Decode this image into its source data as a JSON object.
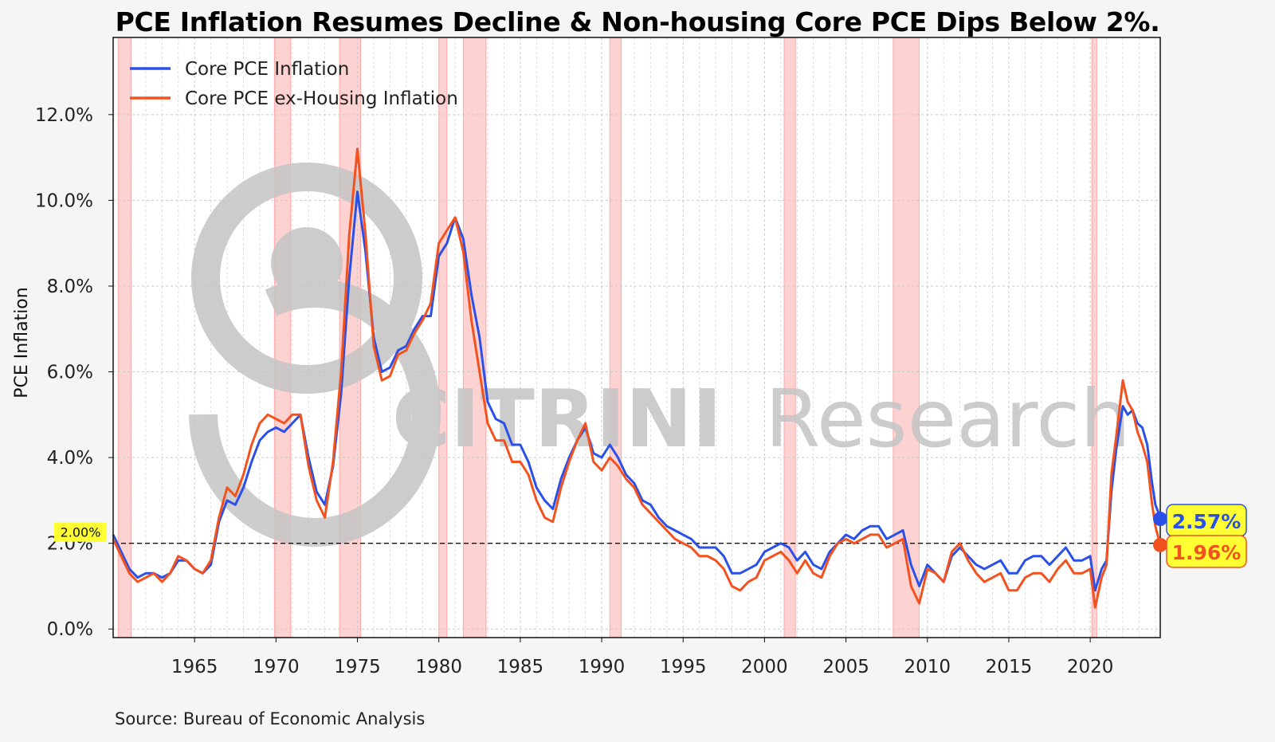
{
  "title": "PCE Inflation Resumes Decline & Non-housing Core PCE Dips Below 2%.",
  "source": "Source: Bureau of Economic Analysis",
  "watermark": {
    "brand": "CITRINI",
    "suffix": "Research"
  },
  "chart_data": {
    "type": "line",
    "ylabel": "PCE Inflation",
    "xlim": [
      1960.0,
      2024.3
    ],
    "ylim": [
      -0.2,
      13.8
    ],
    "yticks": [
      0,
      2,
      4,
      6,
      8,
      10,
      12
    ],
    "ytick_labels": [
      "0.0%",
      "2.0%",
      "4.0%",
      "6.0%",
      "8.0%",
      "10.0%",
      "12.0%"
    ],
    "xticks": [
      1965,
      1970,
      1975,
      1980,
      1985,
      1990,
      1995,
      2000,
      2005,
      2010,
      2015,
      2020
    ],
    "xtick_labels": [
      "1965",
      "1970",
      "1975",
      "1980",
      "1985",
      "1990",
      "1995",
      "2000",
      "2005",
      "2010",
      "2015",
      "2020"
    ],
    "grid": true,
    "legend_position": "top-left",
    "reference_line": {
      "value": 2.0,
      "label": "2.00%",
      "style": "dashed"
    },
    "recessions": [
      [
        1960.3,
        1961.1
      ],
      [
        1969.9,
        1970.9
      ],
      [
        1973.9,
        1975.2
      ],
      [
        1980.0,
        1980.5
      ],
      [
        1981.5,
        1982.9
      ],
      [
        1990.5,
        1991.2
      ],
      [
        2001.2,
        2001.9
      ],
      [
        2007.9,
        2009.5
      ],
      [
        2020.1,
        2020.4
      ]
    ],
    "series": [
      {
        "name": "Core PCE Inflation",
        "color": "#2b50e8",
        "end_label": "2.57%",
        "points": [
          [
            1960.0,
            2.2
          ],
          [
            1960.5,
            1.8
          ],
          [
            1961.0,
            1.4
          ],
          [
            1961.5,
            1.2
          ],
          [
            1962.0,
            1.3
          ],
          [
            1962.5,
            1.3
          ],
          [
            1963.0,
            1.2
          ],
          [
            1963.5,
            1.3
          ],
          [
            1964.0,
            1.6
          ],
          [
            1964.5,
            1.6
          ],
          [
            1965.0,
            1.4
          ],
          [
            1965.5,
            1.3
          ],
          [
            1966.0,
            1.5
          ],
          [
            1966.5,
            2.5
          ],
          [
            1967.0,
            3.0
          ],
          [
            1967.5,
            2.9
          ],
          [
            1968.0,
            3.3
          ],
          [
            1968.5,
            3.9
          ],
          [
            1969.0,
            4.4
          ],
          [
            1969.5,
            4.6
          ],
          [
            1970.0,
            4.7
          ],
          [
            1970.5,
            4.6
          ],
          [
            1971.0,
            4.8
          ],
          [
            1971.5,
            5.0
          ],
          [
            1972.0,
            4.0
          ],
          [
            1972.5,
            3.2
          ],
          [
            1973.0,
            2.9
          ],
          [
            1973.5,
            3.8
          ],
          [
            1974.0,
            5.5
          ],
          [
            1974.5,
            8.2
          ],
          [
            1975.0,
            10.2
          ],
          [
            1975.5,
            8.8
          ],
          [
            1976.0,
            6.8
          ],
          [
            1976.5,
            6.0
          ],
          [
            1977.0,
            6.1
          ],
          [
            1977.5,
            6.5
          ],
          [
            1978.0,
            6.6
          ],
          [
            1978.5,
            7.0
          ],
          [
            1979.0,
            7.3
          ],
          [
            1979.5,
            7.3
          ],
          [
            1980.0,
            8.7
          ],
          [
            1980.5,
            9.0
          ],
          [
            1981.0,
            9.6
          ],
          [
            1981.5,
            9.1
          ],
          [
            1982.0,
            7.8
          ],
          [
            1982.5,
            6.8
          ],
          [
            1983.0,
            5.3
          ],
          [
            1983.5,
            4.9
          ],
          [
            1984.0,
            4.8
          ],
          [
            1984.5,
            4.3
          ],
          [
            1985.0,
            4.3
          ],
          [
            1985.5,
            3.9
          ],
          [
            1986.0,
            3.3
          ],
          [
            1986.5,
            3.0
          ],
          [
            1987.0,
            2.8
          ],
          [
            1987.5,
            3.5
          ],
          [
            1988.0,
            4.0
          ],
          [
            1988.5,
            4.4
          ],
          [
            1989.0,
            4.7
          ],
          [
            1989.5,
            4.1
          ],
          [
            1990.0,
            4.0
          ],
          [
            1990.5,
            4.3
          ],
          [
            1991.0,
            4.0
          ],
          [
            1991.5,
            3.6
          ],
          [
            1992.0,
            3.4
          ],
          [
            1992.5,
            3.0
          ],
          [
            1993.0,
            2.9
          ],
          [
            1993.5,
            2.6
          ],
          [
            1994.0,
            2.4
          ],
          [
            1994.5,
            2.3
          ],
          [
            1995.0,
            2.2
          ],
          [
            1995.5,
            2.1
          ],
          [
            1996.0,
            1.9
          ],
          [
            1996.5,
            1.9
          ],
          [
            1997.0,
            1.9
          ],
          [
            1997.5,
            1.7
          ],
          [
            1998.0,
            1.3
          ],
          [
            1998.5,
            1.3
          ],
          [
            1999.0,
            1.4
          ],
          [
            1999.5,
            1.5
          ],
          [
            2000.0,
            1.8
          ],
          [
            2000.5,
            1.9
          ],
          [
            2001.0,
            2.0
          ],
          [
            2001.5,
            1.9
          ],
          [
            2002.0,
            1.6
          ],
          [
            2002.5,
            1.8
          ],
          [
            2003.0,
            1.5
          ],
          [
            2003.5,
            1.4
          ],
          [
            2004.0,
            1.8
          ],
          [
            2004.5,
            2.0
          ],
          [
            2005.0,
            2.2
          ],
          [
            2005.5,
            2.1
          ],
          [
            2006.0,
            2.3
          ],
          [
            2006.5,
            2.4
          ],
          [
            2007.0,
            2.4
          ],
          [
            2007.5,
            2.1
          ],
          [
            2008.0,
            2.2
          ],
          [
            2008.5,
            2.3
          ],
          [
            2009.0,
            1.5
          ],
          [
            2009.5,
            1.0
          ],
          [
            2010.0,
            1.5
          ],
          [
            2010.5,
            1.3
          ],
          [
            2011.0,
            1.1
          ],
          [
            2011.5,
            1.7
          ],
          [
            2012.0,
            1.9
          ],
          [
            2012.5,
            1.7
          ],
          [
            2013.0,
            1.5
          ],
          [
            2013.5,
            1.4
          ],
          [
            2014.0,
            1.5
          ],
          [
            2014.5,
            1.6
          ],
          [
            2015.0,
            1.3
          ],
          [
            2015.5,
            1.3
          ],
          [
            2016.0,
            1.6
          ],
          [
            2016.5,
            1.7
          ],
          [
            2017.0,
            1.7
          ],
          [
            2017.5,
            1.5
          ],
          [
            2018.0,
            1.7
          ],
          [
            2018.5,
            1.9
          ],
          [
            2019.0,
            1.6
          ],
          [
            2019.5,
            1.6
          ],
          [
            2020.0,
            1.7
          ],
          [
            2020.3,
            0.9
          ],
          [
            2020.7,
            1.4
          ],
          [
            2021.0,
            1.6
          ],
          [
            2021.3,
            3.2
          ],
          [
            2021.6,
            4.2
          ],
          [
            2022.0,
            5.2
          ],
          [
            2022.3,
            5.0
          ],
          [
            2022.6,
            5.1
          ],
          [
            2022.9,
            4.8
          ],
          [
            2023.2,
            4.7
          ],
          [
            2023.5,
            4.3
          ],
          [
            2023.8,
            3.4
          ],
          [
            2024.0,
            2.9
          ],
          [
            2024.2,
            2.7
          ],
          [
            2024.3,
            2.57
          ]
        ]
      },
      {
        "name": "Core PCE ex-Housing Inflation",
        "color": "#f2521f",
        "end_label": "1.96%",
        "points": [
          [
            1960.0,
            2.1
          ],
          [
            1960.5,
            1.7
          ],
          [
            1961.0,
            1.3
          ],
          [
            1961.5,
            1.1
          ],
          [
            1962.0,
            1.2
          ],
          [
            1962.5,
            1.3
          ],
          [
            1963.0,
            1.1
          ],
          [
            1963.5,
            1.3
          ],
          [
            1964.0,
            1.7
          ],
          [
            1964.5,
            1.6
          ],
          [
            1965.0,
            1.4
          ],
          [
            1965.5,
            1.3
          ],
          [
            1966.0,
            1.6
          ],
          [
            1966.5,
            2.6
          ],
          [
            1967.0,
            3.3
          ],
          [
            1967.5,
            3.1
          ],
          [
            1968.0,
            3.6
          ],
          [
            1968.5,
            4.3
          ],
          [
            1969.0,
            4.8
          ],
          [
            1969.5,
            5.0
          ],
          [
            1970.0,
            4.9
          ],
          [
            1970.5,
            4.8
          ],
          [
            1971.0,
            5.0
          ],
          [
            1971.5,
            5.0
          ],
          [
            1972.0,
            3.8
          ],
          [
            1972.5,
            3.0
          ],
          [
            1973.0,
            2.6
          ],
          [
            1973.5,
            3.9
          ],
          [
            1974.0,
            6.0
          ],
          [
            1974.5,
            9.2
          ],
          [
            1975.0,
            11.2
          ],
          [
            1975.5,
            9.2
          ],
          [
            1976.0,
            6.6
          ],
          [
            1976.5,
            5.8
          ],
          [
            1977.0,
            5.9
          ],
          [
            1977.5,
            6.4
          ],
          [
            1978.0,
            6.5
          ],
          [
            1978.5,
            6.9
          ],
          [
            1979.0,
            7.2
          ],
          [
            1979.5,
            7.6
          ],
          [
            1980.0,
            9.0
          ],
          [
            1980.5,
            9.3
          ],
          [
            1981.0,
            9.6
          ],
          [
            1981.5,
            8.8
          ],
          [
            1982.0,
            7.2
          ],
          [
            1982.5,
            6.0
          ],
          [
            1983.0,
            4.8
          ],
          [
            1983.5,
            4.4
          ],
          [
            1984.0,
            4.4
          ],
          [
            1984.5,
            3.9
          ],
          [
            1985.0,
            3.9
          ],
          [
            1985.5,
            3.6
          ],
          [
            1986.0,
            3.0
          ],
          [
            1986.5,
            2.6
          ],
          [
            1987.0,
            2.5
          ],
          [
            1987.5,
            3.3
          ],
          [
            1988.0,
            3.9
          ],
          [
            1988.5,
            4.4
          ],
          [
            1989.0,
            4.8
          ],
          [
            1989.5,
            3.9
          ],
          [
            1990.0,
            3.7
          ],
          [
            1990.5,
            4.0
          ],
          [
            1991.0,
            3.8
          ],
          [
            1991.5,
            3.5
          ],
          [
            1992.0,
            3.3
          ],
          [
            1992.5,
            2.9
          ],
          [
            1993.0,
            2.7
          ],
          [
            1993.5,
            2.5
          ],
          [
            1994.0,
            2.3
          ],
          [
            1994.5,
            2.1
          ],
          [
            1995.0,
            2.0
          ],
          [
            1995.5,
            1.9
          ],
          [
            1996.0,
            1.7
          ],
          [
            1996.5,
            1.7
          ],
          [
            1997.0,
            1.6
          ],
          [
            1997.5,
            1.4
          ],
          [
            1998.0,
            1.0
          ],
          [
            1998.5,
            0.9
          ],
          [
            1999.0,
            1.1
          ],
          [
            1999.5,
            1.2
          ],
          [
            2000.0,
            1.6
          ],
          [
            2000.5,
            1.7
          ],
          [
            2001.0,
            1.8
          ],
          [
            2001.5,
            1.6
          ],
          [
            2002.0,
            1.3
          ],
          [
            2002.5,
            1.6
          ],
          [
            2003.0,
            1.3
          ],
          [
            2003.5,
            1.2
          ],
          [
            2004.0,
            1.7
          ],
          [
            2004.5,
            2.0
          ],
          [
            2005.0,
            2.1
          ],
          [
            2005.5,
            2.0
          ],
          [
            2006.0,
            2.1
          ],
          [
            2006.5,
            2.2
          ],
          [
            2007.0,
            2.2
          ],
          [
            2007.5,
            1.9
          ],
          [
            2008.0,
            2.0
          ],
          [
            2008.5,
            2.1
          ],
          [
            2009.0,
            1.0
          ],
          [
            2009.5,
            0.6
          ],
          [
            2010.0,
            1.4
          ],
          [
            2010.5,
            1.3
          ],
          [
            2011.0,
            1.1
          ],
          [
            2011.5,
            1.8
          ],
          [
            2012.0,
            2.0
          ],
          [
            2012.5,
            1.6
          ],
          [
            2013.0,
            1.3
          ],
          [
            2013.5,
            1.1
          ],
          [
            2014.0,
            1.2
          ],
          [
            2014.5,
            1.3
          ],
          [
            2015.0,
            0.9
          ],
          [
            2015.5,
            0.9
          ],
          [
            2016.0,
            1.2
          ],
          [
            2016.5,
            1.3
          ],
          [
            2017.0,
            1.3
          ],
          [
            2017.5,
            1.1
          ],
          [
            2018.0,
            1.4
          ],
          [
            2018.5,
            1.6
          ],
          [
            2019.0,
            1.3
          ],
          [
            2019.5,
            1.3
          ],
          [
            2020.0,
            1.4
          ],
          [
            2020.3,
            0.5
          ],
          [
            2020.7,
            1.2
          ],
          [
            2021.0,
            1.5
          ],
          [
            2021.3,
            3.6
          ],
          [
            2021.6,
            4.5
          ],
          [
            2022.0,
            5.8
          ],
          [
            2022.3,
            5.3
          ],
          [
            2022.6,
            5.1
          ],
          [
            2022.9,
            4.6
          ],
          [
            2023.2,
            4.3
          ],
          [
            2023.5,
            3.9
          ],
          [
            2023.8,
            2.9
          ],
          [
            2024.0,
            2.4
          ],
          [
            2024.2,
            2.1
          ],
          [
            2024.3,
            1.96
          ]
        ]
      }
    ]
  }
}
